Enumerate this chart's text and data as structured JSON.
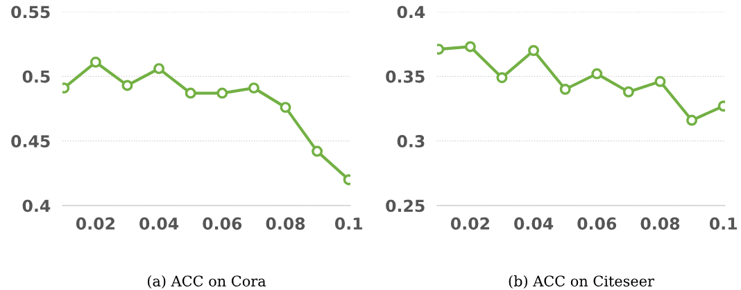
{
  "chart_data": [
    {
      "type": "line",
      "x": [
        0.01,
        0.02,
        0.03,
        0.04,
        0.05,
        0.06,
        0.07,
        0.08,
        0.09,
        0.1
      ],
      "series": [
        {
          "color": "#72b043",
          "values": [
            0.491,
            0.511,
            0.493,
            0.506,
            0.487,
            0.487,
            0.491,
            0.476,
            0.442,
            0.42
          ]
        }
      ],
      "xlim": [
        0.0095,
        0.1005
      ],
      "xticks": [
        0.02,
        0.04,
        0.06,
        0.08,
        {
          "value": 0.1,
          "label": "0.1"
        }
      ],
      "ylim": [
        0.4,
        0.55
      ],
      "yticks": [
        {
          "value": 0.4,
          "label": "0.4"
        },
        {
          "value": 0.45,
          "label": "0.45"
        },
        {
          "value": 0.5,
          "label": "0.5"
        },
        0.55
      ],
      "grid": "y",
      "marker": "circle",
      "line_style": "solid",
      "annotations": [
        "(a) ACC on Cora"
      ]
    },
    {
      "type": "line",
      "x": [
        0.01,
        0.02,
        0.03,
        0.04,
        0.05,
        0.06,
        0.07,
        0.08,
        0.09,
        0.1
      ],
      "series": [
        {
          "color": "#72b043",
          "values": [
            0.371,
            0.373,
            0.349,
            0.37,
            0.34,
            0.352,
            0.338,
            0.346,
            0.316,
            0.327
          ]
        }
      ],
      "xlim": [
        0.0095,
        0.1005
      ],
      "xticks": [
        0.02,
        0.04,
        0.06,
        0.08,
        {
          "value": 0.1,
          "label": "0.1"
        }
      ],
      "ylim": [
        0.25,
        0.4
      ],
      "yticks": [
        0.25,
        {
          "value": 0.3,
          "label": "0.3"
        },
        0.35,
        {
          "value": 0.4,
          "label": "0.4"
        }
      ],
      "grid": "y",
      "marker": "circle",
      "line_style": "solid",
      "annotations": [
        "(b) ACC on Citeseer"
      ]
    }
  ]
}
